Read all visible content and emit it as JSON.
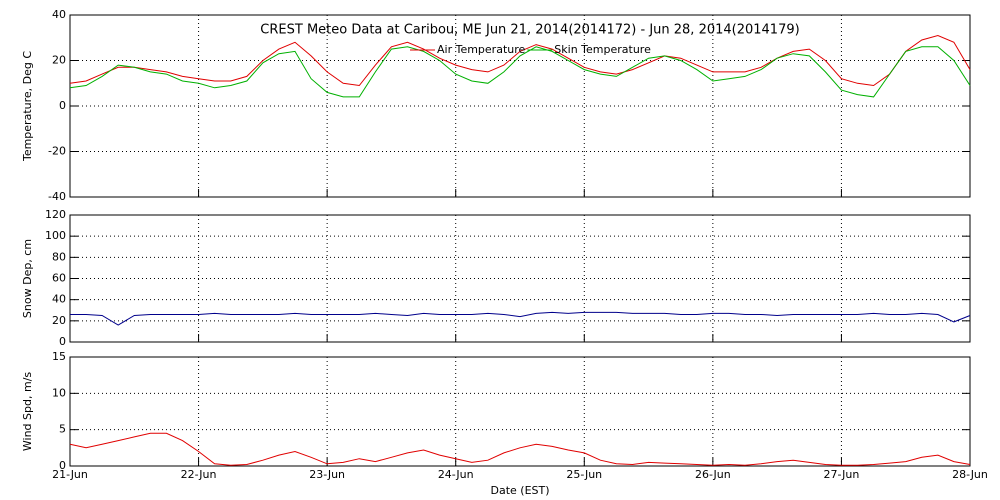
{
  "chart_data": [
    {
      "type": "line",
      "title": "CREST Meteo Data at Caribou, ME   Jun 21, 2014(2014172) - Jun 28, 2014(2014179)",
      "ylabel": "Temperature, Deg C",
      "legend": "top",
      "grid": true,
      "xlim": [
        0,
        7
      ],
      "xticks": [
        1,
        2,
        3,
        4,
        5,
        6
      ],
      "ylim": [
        -40,
        40
      ],
      "yticks": [
        -40,
        -20,
        0,
        20,
        40
      ],
      "x": [
        0,
        0.125,
        0.25,
        0.375,
        0.5,
        0.625,
        0.75,
        0.875,
        1,
        1.125,
        1.25,
        1.375,
        1.5,
        1.625,
        1.75,
        1.875,
        2,
        2.125,
        2.25,
        2.375,
        2.5,
        2.625,
        2.75,
        2.875,
        3,
        3.125,
        3.25,
        3.375,
        3.5,
        3.625,
        3.75,
        3.875,
        4,
        4.125,
        4.25,
        4.375,
        4.5,
        4.625,
        4.75,
        4.875,
        5,
        5.125,
        5.25,
        5.375,
        5.5,
        5.625,
        5.75,
        5.875,
        6,
        6.125,
        6.25,
        6.375,
        6.5,
        6.625,
        6.75,
        6.875,
        7
      ],
      "series": [
        {
          "name": "Air Temperature",
          "color": "#e00000",
          "values": [
            10,
            11,
            14,
            17,
            17,
            16,
            15,
            13,
            12,
            11,
            11,
            13,
            20,
            25,
            28,
            22,
            15,
            10,
            9,
            18,
            26,
            28,
            25,
            21,
            18,
            16,
            15,
            18,
            24,
            27,
            25,
            21,
            17,
            15,
            14,
            16,
            19,
            22,
            21,
            18,
            15,
            15,
            15,
            17,
            21,
            24,
            25,
            20,
            12,
            10,
            9,
            14,
            24,
            29,
            31,
            28,
            16
          ]
        },
        {
          "name": "Skin Temperature",
          "color": "#00b000",
          "values": [
            8,
            9,
            13,
            18,
            17,
            15,
            14,
            11,
            10,
            8,
            9,
            11,
            19,
            23,
            24,
            12,
            6,
            4,
            4,
            15,
            25,
            26,
            24,
            20,
            14,
            11,
            10,
            15,
            22,
            26,
            24,
            20,
            16,
            14,
            13,
            17,
            21,
            22,
            20,
            16,
            11,
            12,
            13,
            16,
            21,
            23,
            22,
            15,
            7,
            5,
            4,
            14,
            24,
            26,
            26,
            20,
            9
          ]
        }
      ]
    },
    {
      "type": "line",
      "ylabel": "Snow Dep, cm",
      "grid": true,
      "xlim": [
        0,
        7
      ],
      "xticks": [
        1,
        2,
        3,
        4,
        5,
        6
      ],
      "ylim": [
        0,
        120
      ],
      "yticks": [
        0,
        20,
        40,
        60,
        80,
        100,
        120
      ],
      "x": [
        0,
        0.125,
        0.25,
        0.375,
        0.5,
        0.625,
        0.75,
        0.875,
        1,
        1.125,
        1.25,
        1.375,
        1.5,
        1.625,
        1.75,
        1.875,
        2,
        2.125,
        2.25,
        2.375,
        2.5,
        2.625,
        2.75,
        2.875,
        3,
        3.125,
        3.25,
        3.375,
        3.5,
        3.625,
        3.75,
        3.875,
        4,
        4.125,
        4.25,
        4.375,
        4.5,
        4.625,
        4.75,
        4.875,
        5,
        5.125,
        5.25,
        5.375,
        5.5,
        5.625,
        5.75,
        5.875,
        6,
        6.125,
        6.25,
        6.375,
        6.5,
        6.625,
        6.75,
        6.875,
        7
      ],
      "series": [
        {
          "color": "#00008b",
          "values": [
            26,
            26,
            25,
            16,
            25,
            26,
            26,
            26,
            26,
            27,
            26,
            26,
            26,
            26,
            27,
            26,
            26,
            26,
            26,
            27,
            26,
            25,
            27,
            26,
            26,
            26,
            27,
            26,
            24,
            27,
            28,
            27,
            28,
            28,
            28,
            27,
            27,
            27,
            26,
            26,
            27,
            27,
            26,
            26,
            25,
            26,
            26,
            26,
            26,
            26,
            27,
            26,
            26,
            27,
            26,
            19,
            25
          ]
        }
      ]
    },
    {
      "type": "line",
      "ylabel": "Wind Spd, m/s",
      "xlabel": "Date (EST)",
      "grid": true,
      "xlim": [
        0,
        7
      ],
      "xticks": [
        {
          "value": 0,
          "label": "21-Jun"
        },
        {
          "value": 1,
          "label": "22-Jun"
        },
        {
          "value": 2,
          "label": "23-Jun"
        },
        {
          "value": 3,
          "label": "24-Jun"
        },
        {
          "value": 4,
          "label": "25-Jun"
        },
        {
          "value": 5,
          "label": "26-Jun"
        },
        {
          "value": 6,
          "label": "27-Jun"
        },
        {
          "value": 7,
          "label": "28-Jun"
        }
      ],
      "ylim": [
        0,
        15
      ],
      "yticks": [
        0,
        5,
        10,
        15
      ],
      "x": [
        0,
        0.125,
        0.25,
        0.375,
        0.5,
        0.625,
        0.75,
        0.875,
        1,
        1.125,
        1.25,
        1.375,
        1.5,
        1.625,
        1.75,
        1.875,
        2,
        2.125,
        2.25,
        2.375,
        2.5,
        2.625,
        2.75,
        2.875,
        3,
        3.125,
        3.25,
        3.375,
        3.5,
        3.625,
        3.75,
        3.875,
        4,
        4.125,
        4.25,
        4.375,
        4.5,
        4.625,
        4.75,
        4.875,
        5,
        5.125,
        5.25,
        5.375,
        5.5,
        5.625,
        5.75,
        5.875,
        6,
        6.125,
        6.25,
        6.375,
        6.5,
        6.625,
        6.75,
        6.875,
        7
      ],
      "series": [
        {
          "color": "#e00000",
          "values": [
            3,
            2.5,
            3,
            3.5,
            4,
            4.5,
            4.5,
            3.5,
            2,
            0.3,
            0.1,
            0.2,
            0.8,
            1.5,
            2,
            1.2,
            0.3,
            0.5,
            1,
            0.6,
            1.2,
            1.8,
            2.2,
            1.5,
            1,
            0.5,
            0.8,
            1.8,
            2.5,
            3,
            2.7,
            2.2,
            1.8,
            0.8,
            0.3,
            0.2,
            0.5,
            0.4,
            0.3,
            0.2,
            0.1,
            0.2,
            0.1,
            0.3,
            0.6,
            0.8,
            0.5,
            0.2,
            0.1,
            0.1,
            0.2,
            0.4,
            0.6,
            1.2,
            1.5,
            0.6,
            0.2
          ]
        }
      ]
    }
  ]
}
